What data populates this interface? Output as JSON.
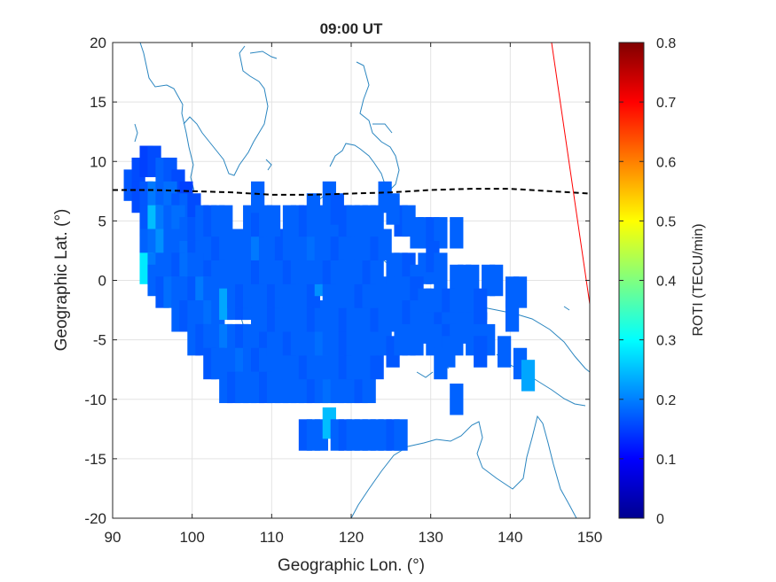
{
  "chart_data": {
    "type": "heatmap",
    "title": "09:00 UT",
    "xlabel": "Geographic Lon. (°)",
    "ylabel": "Geographic Lat. (°)",
    "xlim": [
      90,
      150
    ],
    "ylim": [
      -20,
      20
    ],
    "xticks": [
      "90",
      "100",
      "110",
      "120",
      "130",
      "140",
      "150"
    ],
    "yticks": [
      "-20",
      "-15",
      "-10",
      "-5",
      "0",
      "5",
      "10",
      "15",
      "20"
    ],
    "grid": true,
    "colorbar": {
      "label": "ROTI (TECU/min)",
      "range": [
        0,
        0.8
      ],
      "ticks": [
        "0",
        "0.1",
        "0.2",
        "0.3",
        "0.4",
        "0.5",
        "0.6",
        "0.7",
        "0.8"
      ],
      "colormap": "jet"
    },
    "magnetic_equator": [
      [
        90,
        7.6
      ],
      [
        95,
        7.6
      ],
      [
        100,
        7.5
      ],
      [
        105,
        7.4
      ],
      [
        110,
        7.2
      ],
      [
        115,
        7.2
      ],
      [
        120,
        7.3
      ],
      [
        125,
        7.4
      ],
      [
        130,
        7.6
      ],
      [
        135,
        7.7
      ],
      [
        140,
        7.7
      ],
      [
        145,
        7.5
      ],
      [
        150,
        7.3
      ]
    ],
    "red_line": [
      [
        145.2,
        20
      ],
      [
        150,
        -2
      ]
    ],
    "roti_cells": [
      [
        92,
        8,
        0.09
      ],
      [
        93,
        9,
        0.08
      ],
      [
        94,
        10,
        0.07
      ],
      [
        95,
        10,
        0.08
      ],
      [
        96,
        9,
        0.1
      ],
      [
        97,
        9,
        0.09
      ],
      [
        98,
        8,
        0.08
      ],
      [
        99,
        7,
        0.07
      ],
      [
        93,
        7,
        0.08
      ],
      [
        94,
        7,
        0.09
      ],
      [
        95,
        7,
        0.12
      ],
      [
        96,
        7,
        0.1
      ],
      [
        97,
        7,
        0.11
      ],
      [
        98,
        6,
        0.09
      ],
      [
        99,
        6,
        0.1
      ],
      [
        100,
        6,
        0.08
      ],
      [
        94,
        5,
        0.09
      ],
      [
        95,
        5,
        0.18
      ],
      [
        96,
        5,
        0.12
      ],
      [
        97,
        5,
        0.1
      ],
      [
        98,
        5,
        0.11
      ],
      [
        99,
        4,
        0.1
      ],
      [
        100,
        4,
        0.09
      ],
      [
        101,
        4,
        0.1
      ],
      [
        94,
        3,
        0.1
      ],
      [
        95,
        3,
        0.11
      ],
      [
        96,
        3,
        0.14
      ],
      [
        97,
        3,
        0.1
      ],
      [
        98,
        3,
        0.1
      ],
      [
        99,
        2,
        0.11
      ],
      [
        100,
        2,
        0.09
      ],
      [
        101,
        2,
        0.1
      ],
      [
        102,
        2,
        0.1
      ],
      [
        103,
        2,
        0.08
      ],
      [
        94,
        1,
        0.22
      ],
      [
        95,
        1,
        0.12
      ],
      [
        96,
        1,
        0.1
      ],
      [
        97,
        1,
        0.1
      ],
      [
        98,
        1,
        0.09
      ],
      [
        99,
        1,
        0.11
      ],
      [
        100,
        1,
        0.1
      ],
      [
        101,
        1,
        0.1
      ],
      [
        102,
        1,
        0.09
      ],
      [
        103,
        1,
        0.1
      ],
      [
        95,
        0,
        0.1
      ],
      [
        96,
        -1,
        0.09
      ],
      [
        97,
        -1,
        0.11
      ],
      [
        98,
        -1,
        0.1
      ],
      [
        99,
        -1,
        0.1
      ],
      [
        100,
        -1,
        0.09
      ],
      [
        101,
        -1,
        0.12
      ],
      [
        102,
        -1,
        0.1
      ],
      [
        103,
        -1,
        0.1
      ],
      [
        104,
        -1,
        0.1
      ],
      [
        98,
        -3,
        0.1
      ],
      [
        99,
        -3,
        0.09
      ],
      [
        100,
        -3,
        0.1
      ],
      [
        101,
        -3,
        0.1
      ],
      [
        102,
        -3,
        0.11
      ],
      [
        103,
        -3,
        0.1
      ],
      [
        104,
        -2,
        0.16
      ],
      [
        105,
        -2,
        0.1
      ],
      [
        106,
        -2,
        0.09
      ],
      [
        107,
        -2,
        0.1
      ],
      [
        100,
        -5,
        0.1
      ],
      [
        101,
        -5,
        0.09
      ],
      [
        102,
        -5,
        0.1
      ],
      [
        103,
        -5,
        0.1
      ],
      [
        104,
        -5,
        0.12
      ],
      [
        105,
        -5,
        0.1
      ],
      [
        106,
        -5,
        0.09
      ],
      [
        107,
        -5,
        0.1
      ],
      [
        108,
        -5,
        0.1
      ],
      [
        109,
        -5,
        0.09
      ],
      [
        102,
        -7,
        0.09
      ],
      [
        103,
        -7,
        0.1
      ],
      [
        104,
        -7,
        0.1
      ],
      [
        105,
        -7,
        0.1
      ],
      [
        106,
        -7,
        0.11
      ],
      [
        107,
        -7,
        0.1
      ],
      [
        108,
        -7,
        0.09
      ],
      [
        109,
        -7,
        0.1
      ],
      [
        110,
        -7,
        0.1
      ],
      [
        111,
        -7,
        0.1
      ],
      [
        104,
        -9,
        0.1
      ],
      [
        105,
        -9,
        0.09
      ],
      [
        106,
        -9,
        0.1
      ],
      [
        107,
        -9,
        0.1
      ],
      [
        108,
        -9,
        0.1
      ],
      [
        109,
        -9,
        0.09
      ],
      [
        110,
        -9,
        0.1
      ],
      [
        111,
        -9,
        0.1
      ],
      [
        112,
        -9,
        0.1
      ],
      [
        113,
        -9,
        0.1
      ],
      [
        114,
        -9,
        0.1
      ],
      [
        115,
        -9,
        0.09
      ],
      [
        116,
        -9,
        0.1
      ],
      [
        117,
        -9,
        0.11
      ],
      [
        118,
        -9,
        0.1
      ],
      [
        119,
        -9,
        0.1
      ],
      [
        120,
        -9,
        0.1
      ],
      [
        121,
        -9,
        0.09
      ],
      [
        122,
        -9,
        0.1
      ],
      [
        112,
        -7,
        0.1
      ],
      [
        113,
        -7,
        0.1
      ],
      [
        114,
        -7,
        0.09
      ],
      [
        115,
        -7,
        0.1
      ],
      [
        116,
        -7,
        0.1
      ],
      [
        117,
        -7,
        0.1
      ],
      [
        118,
        -7,
        0.1
      ],
      [
        119,
        -7,
        0.09
      ],
      [
        120,
        -7,
        0.1
      ],
      [
        121,
        -7,
        0.1
      ],
      [
        122,
        -7,
        0.1
      ],
      [
        123,
        -7,
        0.09
      ],
      [
        110,
        -5,
        0.1
      ],
      [
        111,
        -5,
        0.1
      ],
      [
        112,
        -5,
        0.09
      ],
      [
        113,
        -5,
        0.1
      ],
      [
        114,
        -5,
        0.1
      ],
      [
        115,
        -5,
        0.1
      ],
      [
        116,
        -5,
        0.11
      ],
      [
        117,
        -5,
        0.1
      ],
      [
        118,
        -5,
        0.1
      ],
      [
        119,
        -5,
        0.09
      ],
      [
        120,
        -5,
        0.1
      ],
      [
        121,
        -5,
        0.1
      ],
      [
        122,
        -5,
        0.1
      ],
      [
        123,
        -5,
        0.1
      ],
      [
        124,
        -5,
        0.1
      ],
      [
        125,
        -6,
        0.09
      ],
      [
        108,
        -3,
        0.1
      ],
      [
        109,
        -3,
        0.1
      ],
      [
        110,
        -3,
        0.09
      ],
      [
        111,
        -3,
        0.1
      ],
      [
        112,
        -3,
        0.1
      ],
      [
        113,
        -3,
        0.1
      ],
      [
        114,
        -3,
        0.1
      ],
      [
        115,
        -3,
        0.09
      ],
      [
        116,
        -3,
        0.1
      ],
      [
        117,
        -3,
        0.1
      ],
      [
        118,
        -3,
        0.1
      ],
      [
        119,
        -3,
        0.09
      ],
      [
        120,
        -3,
        0.1
      ],
      [
        121,
        -3,
        0.1
      ],
      [
        122,
        -3,
        0.1
      ],
      [
        123,
        -3,
        0.09
      ],
      [
        124,
        -3,
        0.1
      ],
      [
        125,
        -3,
        0.1
      ],
      [
        105,
        -1,
        0.1
      ],
      [
        106,
        -1,
        0.09
      ],
      [
        107,
        -1,
        0.1
      ],
      [
        108,
        -1,
        0.1
      ],
      [
        109,
        -1,
        0.1
      ],
      [
        110,
        -1,
        0.09
      ],
      [
        111,
        -1,
        0.1
      ],
      [
        112,
        -1,
        0.1
      ],
      [
        113,
        -1,
        0.1
      ],
      [
        114,
        -1,
        0.1
      ],
      [
        115,
        -1,
        0.09
      ],
      [
        116,
        0,
        0.14
      ],
      [
        117,
        -1,
        0.1
      ],
      [
        118,
        -1,
        0.1
      ],
      [
        119,
        -1,
        0.1
      ],
      [
        120,
        -1,
        0.1
      ],
      [
        121,
        -1,
        0.09
      ],
      [
        122,
        -1,
        0.1
      ],
      [
        123,
        -1,
        0.1
      ],
      [
        124,
        -1,
        0.1
      ],
      [
        104,
        1,
        0.1
      ],
      [
        105,
        1,
        0.1
      ],
      [
        106,
        1,
        0.1
      ],
      [
        107,
        1,
        0.1
      ],
      [
        108,
        1,
        0.09
      ],
      [
        109,
        1,
        0.1
      ],
      [
        110,
        1,
        0.1
      ],
      [
        111,
        1,
        0.1
      ],
      [
        112,
        1,
        0.09
      ],
      [
        113,
        1,
        0.1
      ],
      [
        114,
        1,
        0.1
      ],
      [
        115,
        1,
        0.1
      ],
      [
        116,
        1,
        0.1
      ],
      [
        117,
        1,
        0.09
      ],
      [
        118,
        1,
        0.1
      ],
      [
        119,
        1,
        0.1
      ],
      [
        120,
        1,
        0.1
      ],
      [
        121,
        1,
        0.1
      ],
      [
        122,
        1,
        0.09
      ],
      [
        123,
        1,
        0.1
      ],
      [
        102,
        3,
        0.1
      ],
      [
        103,
        3,
        0.09
      ],
      [
        104,
        3,
        0.1
      ],
      [
        105,
        3,
        0.1
      ],
      [
        106,
        3,
        0.1
      ],
      [
        107,
        3,
        0.1
      ],
      [
        108,
        3,
        0.12
      ],
      [
        109,
        3,
        0.1
      ],
      [
        110,
        3,
        0.1
      ],
      [
        111,
        3,
        0.09
      ],
      [
        112,
        3,
        0.1
      ],
      [
        113,
        3,
        0.1
      ],
      [
        114,
        3,
        0.1
      ],
      [
        115,
        3,
        0.11
      ],
      [
        116,
        3,
        0.1
      ],
      [
        117,
        3,
        0.1
      ],
      [
        118,
        3,
        0.09
      ],
      [
        119,
        3,
        0.1
      ],
      [
        120,
        3,
        0.1
      ],
      [
        121,
        3,
        0.1
      ],
      [
        122,
        3,
        0.1
      ],
      [
        123,
        3,
        0.09
      ],
      [
        124,
        3,
        0.1
      ],
      [
        101,
        5,
        0.1
      ],
      [
        102,
        5,
        0.09
      ],
      [
        103,
        5,
        0.1
      ],
      [
        104,
        5,
        0.1
      ],
      [
        107,
        5,
        0.1
      ],
      [
        108,
        5,
        0.09
      ],
      [
        109,
        5,
        0.1
      ],
      [
        110,
        5,
        0.1
      ],
      [
        112,
        5,
        0.1
      ],
      [
        113,
        5,
        0.1
      ],
      [
        114,
        5,
        0.09
      ],
      [
        115,
        5,
        0.1
      ],
      [
        116,
        5,
        0.1
      ],
      [
        117,
        5,
        0.1
      ],
      [
        118,
        5,
        0.1
      ],
      [
        119,
        5,
        0.09
      ],
      [
        120,
        5,
        0.1
      ],
      [
        121,
        5,
        0.1
      ],
      [
        122,
        5,
        0.1
      ],
      [
        123,
        5,
        0.1
      ],
      [
        126,
        5,
        0.09
      ],
      [
        127,
        5,
        0.1
      ],
      [
        128,
        4,
        0.1
      ],
      [
        129,
        4,
        0.1
      ],
      [
        130,
        4,
        0.09
      ],
      [
        131,
        4,
        0.1
      ],
      [
        133,
        4,
        0.1
      ],
      [
        108,
        7,
        0.1
      ],
      [
        115,
        6,
        0.1
      ],
      [
        117,
        7,
        0.1
      ],
      [
        118,
        6,
        0.09
      ],
      [
        124,
        7,
        0.1
      ],
      [
        125,
        6,
        0.1
      ],
      [
        125,
        1,
        0.1
      ],
      [
        126,
        1,
        0.1
      ],
      [
        127,
        1,
        0.09
      ],
      [
        128,
        0,
        0.1
      ],
      [
        129,
        1,
        0.1
      ],
      [
        130,
        1,
        0.1
      ],
      [
        130,
        2,
        0.09
      ],
      [
        131,
        1,
        0.1
      ],
      [
        131,
        0,
        0.1
      ],
      [
        133,
        0,
        0.1
      ],
      [
        134,
        0,
        0.1
      ],
      [
        135,
        0,
        0.1
      ],
      [
        137,
        0,
        0.1
      ],
      [
        138,
        0,
        0.1
      ],
      [
        125,
        -1,
        0.1
      ],
      [
        126,
        -1,
        0.1
      ],
      [
        127,
        -1,
        0.1
      ],
      [
        128,
        -1,
        0.09
      ],
      [
        129,
        -2,
        0.1
      ],
      [
        130,
        -2,
        0.1
      ],
      [
        131,
        -2,
        0.1
      ],
      [
        132,
        -2,
        0.09
      ],
      [
        133,
        -2,
        0.1
      ],
      [
        134,
        -2,
        0.1
      ],
      [
        135,
        -2,
        0.1
      ],
      [
        136,
        -2,
        0.09
      ],
      [
        140,
        -1,
        0.1
      ],
      [
        141,
        -1,
        0.1
      ],
      [
        126,
        -3,
        0.1
      ],
      [
        127,
        -3,
        0.09
      ],
      [
        128,
        -3,
        0.1
      ],
      [
        129,
        -4,
        0.1
      ],
      [
        130,
        -4,
        0.1
      ],
      [
        131,
        -4,
        0.09
      ],
      [
        132,
        -4,
        0.1
      ],
      [
        133,
        -4,
        0.1
      ],
      [
        134,
        -4,
        0.1
      ],
      [
        135,
        -4,
        0.1
      ],
      [
        136,
        -4,
        0.09
      ],
      [
        140,
        -3,
        0.1
      ],
      [
        126,
        -5,
        0.1
      ],
      [
        127,
        -5,
        0.1
      ],
      [
        128,
        -5,
        0.1
      ],
      [
        130,
        -5,
        0.1
      ],
      [
        131,
        -5,
        0.1
      ],
      [
        132,
        -5,
        0.09
      ],
      [
        133,
        -5,
        0.1
      ],
      [
        135,
        -5,
        0.1
      ],
      [
        136,
        -5,
        0.1
      ],
      [
        137,
        -5,
        0.1
      ],
      [
        131,
        -7,
        0.1
      ],
      [
        132,
        -6,
        0.1
      ],
      [
        136,
        -6,
        0.09
      ],
      [
        139,
        -6,
        0.1
      ],
      [
        141,
        -7,
        0.1
      ],
      [
        142,
        -8,
        0.16
      ],
      [
        133,
        -10,
        0.1
      ],
      [
        114,
        -13,
        0.09
      ],
      [
        115,
        -13,
        0.1
      ],
      [
        116,
        -13,
        0.1
      ],
      [
        117,
        -12,
        0.18
      ],
      [
        118,
        -13,
        0.1
      ],
      [
        119,
        -13,
        0.09
      ],
      [
        120,
        -13,
        0.1
      ],
      [
        121,
        -13,
        0.1
      ],
      [
        122,
        -13,
        0.1
      ],
      [
        123,
        -13,
        0.1
      ],
      [
        124,
        -13,
        0.1
      ],
      [
        125,
        -13,
        0.09
      ],
      [
        126,
        -13,
        0.1
      ]
    ]
  }
}
